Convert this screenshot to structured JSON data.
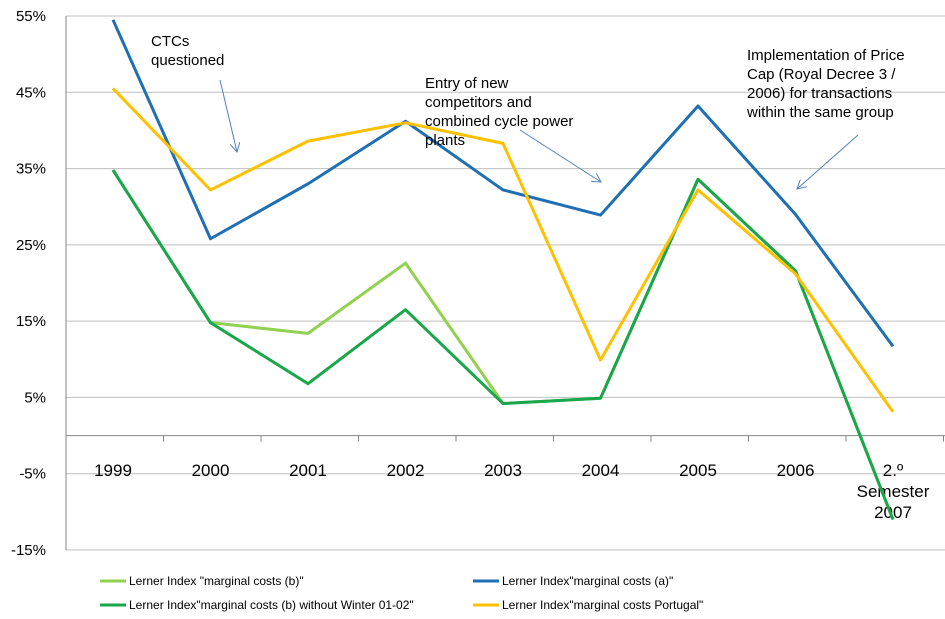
{
  "chart_data": {
    "type": "line",
    "categories": [
      "1999",
      "2000",
      "2001",
      "2002",
      "2003",
      "2004",
      "2005",
      "2006",
      "2.º Semester 2007"
    ],
    "category_lines": [
      [
        "1999"
      ],
      [
        "2000"
      ],
      [
        "2001"
      ],
      [
        "2002"
      ],
      [
        "2003"
      ],
      [
        "2004"
      ],
      [
        "2005"
      ],
      [
        "2006"
      ],
      [
        "2.º",
        "Semester",
        "2007"
      ]
    ],
    "ylim": [
      -15,
      55
    ],
    "yticks": [
      55,
      45,
      35,
      25,
      15,
      5,
      -5,
      -15
    ],
    "ytick_labels": [
      "55%",
      "45%",
      "35%",
      "25%",
      "15%",
      "5%",
      "-5%",
      "-15%"
    ],
    "grid": true,
    "legend_position": "bottom",
    "series": [
      {
        "name": "Lerner Index \"marginal costs (b)\"",
        "color": "#92d050",
        "values": [
          34.8,
          14.8,
          13.4,
          22.6,
          4.2,
          4.9,
          33.6,
          21.6,
          -11
        ]
      },
      {
        "name": "Lerner Index\"marginal costs (a)\"",
        "color": "#1f6fb5",
        "values": [
          54.5,
          25.8,
          33.0,
          41.2,
          32.2,
          28.9,
          43.2,
          29.0,
          11.7
        ]
      },
      {
        "name": "Lerner Index\"marginal costs (b) without Winter 01-02\"",
        "color": "#1aa64a",
        "values": [
          34.8,
          14.8,
          6.8,
          16.5,
          4.2,
          4.9,
          33.6,
          21.6,
          -11
        ]
      },
      {
        "name": "Lerner Index\"marginal costs Portugal\"",
        "color": "#ffc000",
        "values": [
          45.5,
          32.2,
          38.6,
          41.0,
          38.3,
          9.9,
          32.2,
          21.2,
          3.1
        ]
      }
    ],
    "annotations": [
      {
        "lines": [
          "CTCs",
          "questioned"
        ],
        "points_to": {
          "category": "2000",
          "y": 37
        }
      },
      {
        "lines": [
          "Entry of new",
          "competitors and",
          "combined cycle power",
          "plants"
        ],
        "points_to": {
          "category": "2004",
          "y": 33
        }
      },
      {
        "lines": [
          "Implementation of Price",
          "Cap (Royal Decree 3 /",
          "2006) for transactions",
          "within the same group"
        ],
        "points_to": {
          "category": "2006",
          "y": 32
        }
      }
    ]
  }
}
